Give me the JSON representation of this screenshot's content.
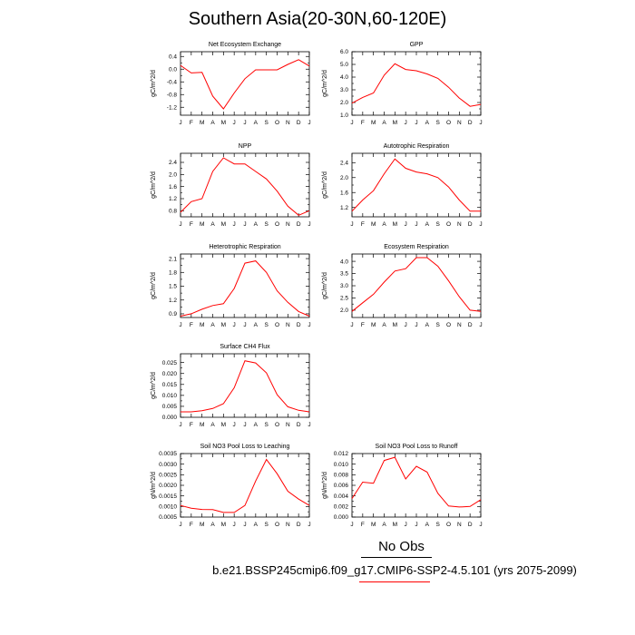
{
  "title": "Southern Asia(20-30N,60-120E)",
  "legend": {
    "obs_label": "No Obs",
    "case_label": "b.e21.BSSP245cmip6.f09_g17.CMIP6-SSP2-4.5.101 (yrs 2075-2099)",
    "case_color": "#ff0000"
  },
  "colors": {
    "series": "#ff0000",
    "axis": "#000000"
  },
  "chart_data": [
    {
      "type": "line",
      "title": "Net Ecosystem Exchange",
      "ylabel": "gC/m^2/d",
      "xlabel": "",
      "x": [
        "J",
        "F",
        "M",
        "A",
        "M",
        "J",
        "J",
        "A",
        "S",
        "O",
        "N",
        "D",
        "J"
      ],
      "series": [
        {
          "values": [
            0.12,
            -0.12,
            -0.1,
            -0.85,
            -1.25,
            -0.75,
            -0.3,
            -0.02,
            -0.02,
            -0.02,
            0.15,
            0.3,
            0.1
          ]
        }
      ],
      "ylim": [
        -1.45,
        0.55
      ],
      "yticks": [
        0.4,
        0.0,
        -0.4,
        -0.8,
        -1.2
      ],
      "ytick_labels": [
        "0.4",
        "0.0",
        "-0.4",
        "-0.8",
        "-1.2"
      ],
      "grid": false
    },
    {
      "type": "line",
      "title": "GPP",
      "ylabel": "gC/m^2/d",
      "xlabel": "",
      "x": [
        "J",
        "F",
        "M",
        "A",
        "M",
        "J",
        "J",
        "A",
        "S",
        "O",
        "N",
        "D",
        "J"
      ],
      "series": [
        {
          "values": [
            1.95,
            2.4,
            2.75,
            4.15,
            5.05,
            4.6,
            4.5,
            4.25,
            3.9,
            3.2,
            2.35,
            1.7,
            1.85
          ]
        }
      ],
      "ylim": [
        1.0,
        6.0
      ],
      "yticks": [
        6.0,
        5.0,
        4.0,
        3.0,
        2.0,
        1.0
      ],
      "ytick_labels": [
        "6.0",
        "5.0",
        "4.0",
        "3.0",
        "2.0",
        "1.0"
      ],
      "grid": false
    },
    {
      "type": "line",
      "title": "NPP",
      "ylabel": "gC/m^2/d",
      "xlabel": "",
      "x": [
        "J",
        "F",
        "M",
        "A",
        "M",
        "J",
        "J",
        "A",
        "S",
        "O",
        "N",
        "D",
        "J"
      ],
      "series": [
        {
          "values": [
            0.75,
            1.1,
            1.2,
            2.1,
            2.55,
            2.35,
            2.35,
            2.1,
            1.85,
            1.45,
            0.95,
            0.65,
            0.8
          ]
        }
      ],
      "ylim": [
        0.6,
        2.7
      ],
      "yticks": [
        2.4,
        2.0,
        1.6,
        1.2,
        0.8
      ],
      "ytick_labels": [
        "2.4",
        "2.0",
        "1.6",
        "1.2",
        "0.8"
      ],
      "grid": false
    },
    {
      "type": "line",
      "title": "Autotrophic Respiration",
      "ylabel": "gC/m^2/d",
      "xlabel": "",
      "x": [
        "J",
        "F",
        "M",
        "A",
        "M",
        "J",
        "J",
        "A",
        "S",
        "O",
        "N",
        "D",
        "J"
      ],
      "series": [
        {
          "values": [
            1.1,
            1.4,
            1.65,
            2.1,
            2.5,
            2.25,
            2.15,
            2.1,
            2.0,
            1.75,
            1.4,
            1.1,
            1.1
          ]
        }
      ],
      "ylim": [
        0.95,
        2.65
      ],
      "yticks": [
        2.4,
        2.0,
        1.6,
        1.2
      ],
      "ytick_labels": [
        "2.4",
        "2.0",
        "1.6",
        "1.2"
      ],
      "grid": false
    },
    {
      "type": "line",
      "title": "Heterotrophic Respiration",
      "ylabel": "gC/m^2/d",
      "xlabel": "",
      "x": [
        "J",
        "F",
        "M",
        "A",
        "M",
        "J",
        "J",
        "A",
        "S",
        "O",
        "N",
        "D",
        "J"
      ],
      "series": [
        {
          "values": [
            0.85,
            0.9,
            1.0,
            1.08,
            1.12,
            1.45,
            2.0,
            2.05,
            1.8,
            1.4,
            1.15,
            0.95,
            0.85
          ]
        }
      ],
      "ylim": [
        0.82,
        2.2
      ],
      "yticks": [
        2.1,
        1.8,
        1.5,
        1.2,
        0.9
      ],
      "ytick_labels": [
        "2.1",
        "1.8",
        "1.5",
        "1.2",
        "0.9"
      ],
      "grid": false
    },
    {
      "type": "line",
      "title": "Ecosystem Respiration",
      "ylabel": "gC/m^2/d",
      "xlabel": "",
      "x": [
        "J",
        "F",
        "M",
        "A",
        "M",
        "J",
        "J",
        "A",
        "S",
        "O",
        "N",
        "D",
        "J"
      ],
      "series": [
        {
          "values": [
            1.95,
            2.3,
            2.65,
            3.15,
            3.6,
            3.7,
            4.15,
            4.15,
            3.8,
            3.2,
            2.55,
            2.0,
            1.95
          ]
        }
      ],
      "ylim": [
        1.7,
        4.3
      ],
      "yticks": [
        4.0,
        3.5,
        3.0,
        2.5,
        2.0
      ],
      "ytick_labels": [
        "4.0",
        "3.5",
        "3.0",
        "2.5",
        "2.0"
      ],
      "grid": false
    },
    {
      "type": "line",
      "title": "Surface CH4 Flux",
      "ylabel": "gC/m^2/d",
      "xlabel": "",
      "x": [
        "J",
        "F",
        "M",
        "A",
        "M",
        "J",
        "J",
        "A",
        "S",
        "O",
        "N",
        "D",
        "J"
      ],
      "series": [
        {
          "values": [
            0.0025,
            0.0025,
            0.003,
            0.004,
            0.0062,
            0.0135,
            0.0258,
            0.0248,
            0.0203,
            0.0103,
            0.0048,
            0.0032,
            0.0025
          ]
        }
      ],
      "ylim": [
        0.0,
        0.029
      ],
      "yticks": [
        0.025,
        0.02,
        0.015,
        0.01,
        0.005,
        0.0
      ],
      "ytick_labels": [
        "0.025",
        "0.020",
        "0.015",
        "0.010",
        "0.005",
        "0.000"
      ],
      "grid": false
    },
    {
      "type": "line",
      "title": "Soil NO3 Pool Loss to Leaching",
      "ylabel": "gN/m^2/d",
      "xlabel": "",
      "x": [
        "J",
        "F",
        "M",
        "A",
        "M",
        "J",
        "J",
        "A",
        "S",
        "O",
        "N",
        "D",
        "J"
      ],
      "series": [
        {
          "values": [
            0.00105,
            0.00092,
            0.00086,
            0.00085,
            0.00072,
            0.00072,
            0.00105,
            0.0022,
            0.00322,
            0.00255,
            0.00172,
            0.00135,
            0.00105
          ]
        }
      ],
      "ylim": [
        0.0005,
        0.0035
      ],
      "yticks": [
        0.0035,
        0.003,
        0.0025,
        0.002,
        0.0015,
        0.001,
        0.0005
      ],
      "ytick_labels": [
        "0.0035",
        "0.0030",
        "0.0025",
        "0.0020",
        "0.0015",
        "0.0010",
        "0.0005"
      ],
      "grid": false
    },
    {
      "type": "line",
      "title": "Soil NO3 Pool Loss to Runoff",
      "ylabel": "gN/m^2/d",
      "xlabel": "",
      "x": [
        "J",
        "F",
        "M",
        "A",
        "M",
        "J",
        "J",
        "A",
        "S",
        "O",
        "N",
        "D",
        "J"
      ],
      "series": [
        {
          "values": [
            0.0035,
            0.0066,
            0.0064,
            0.0107,
            0.0113,
            0.0072,
            0.0096,
            0.0085,
            0.0045,
            0.0021,
            0.0019,
            0.002,
            0.0033
          ]
        }
      ],
      "ylim": [
        0.0,
        0.012
      ],
      "yticks": [
        0.012,
        0.01,
        0.008,
        0.006,
        0.004,
        0.002,
        0.0
      ],
      "ytick_labels": [
        "0.012",
        "0.010",
        "0.008",
        "0.006",
        "0.004",
        "0.002",
        "0.000"
      ],
      "grid": false
    }
  ]
}
